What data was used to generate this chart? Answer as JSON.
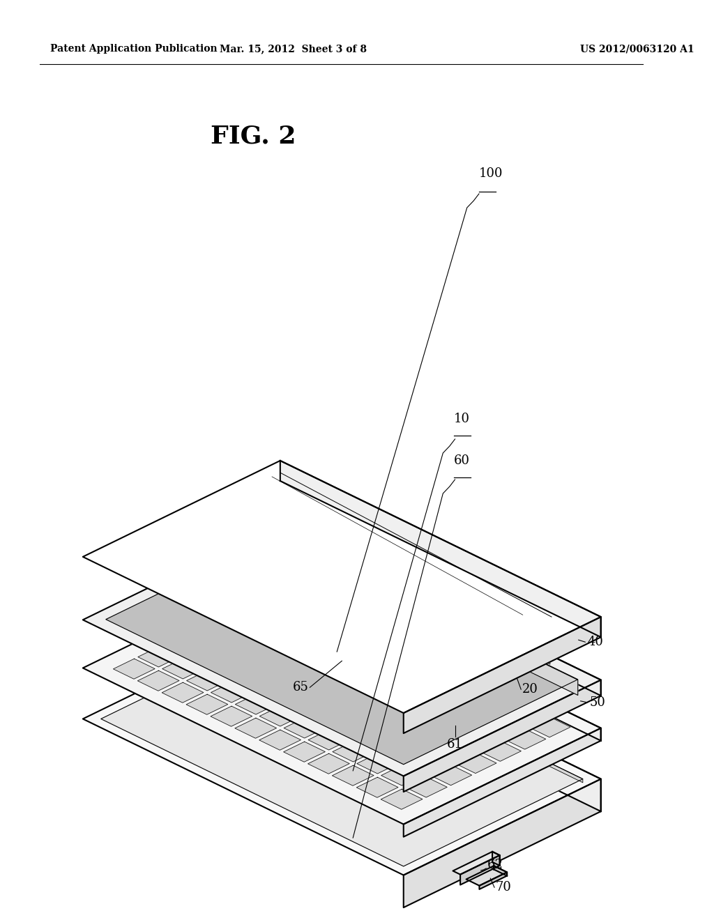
{
  "background_color": "#ffffff",
  "header_left": "Patent Application Publication",
  "header_mid": "Mar. 15, 2012  Sheet 3 of 8",
  "header_right": "US 2012/0063120 A1",
  "figure_label": "FIG. 2",
  "line_color": "#000000",
  "fill_white": "#ffffff",
  "fill_light": "#f0f0f0",
  "fill_mid": "#d8d8d8",
  "fill_dark": "#b0b0b0"
}
